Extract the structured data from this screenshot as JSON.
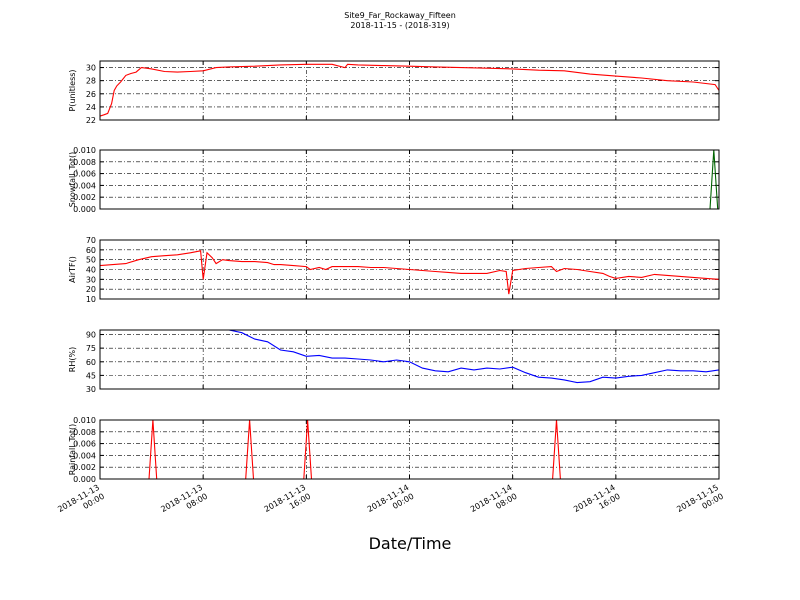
{
  "title": "Site9_Far_Rockaway_Fifteen",
  "subtitle": "2018-11-15 - (2018-319)",
  "xlabel": "Date/Time",
  "x_ticks": [
    [
      "2018-11-13",
      "00:00"
    ],
    [
      "2018-11-13",
      "08:00"
    ],
    [
      "2018-11-13",
      "16:00"
    ],
    [
      "2018-11-14",
      "00:00"
    ],
    [
      "2018-11-14",
      "08:00"
    ],
    [
      "2018-11-14",
      "16:00"
    ],
    [
      "2018-11-15",
      "00:00"
    ]
  ],
  "chart_data": [
    {
      "type": "line",
      "ylabel": "P(unitless)",
      "color": "#ff0000",
      "ylim": [
        22,
        31
      ],
      "yticks": [
        "22",
        "24",
        "26",
        "28",
        "30"
      ],
      "ytick_values": [
        22,
        24,
        26,
        28,
        30
      ],
      "grid": true,
      "x": [
        0,
        0.3,
        0.6,
        0.9,
        1.1,
        1.3,
        1.6,
        2.0,
        2.4,
        2.8,
        3.2,
        3.6,
        4,
        5,
        6,
        7,
        8,
        9,
        10,
        12,
        14,
        16,
        18,
        19,
        19.2,
        20,
        22,
        24,
        26,
        28,
        30,
        32,
        34,
        36,
        38,
        40,
        42,
        44,
        46,
        47.7,
        48
      ],
      "y": [
        22.6,
        22.8,
        23.0,
        24.5,
        26.5,
        27.2,
        27.8,
        28.8,
        29.1,
        29.3,
        30.0,
        29.9,
        29.8,
        29.4,
        29.3,
        29.4,
        29.5,
        30.0,
        30.1,
        30.2,
        30.4,
        30.5,
        30.5,
        30.0,
        30.5,
        30.4,
        30.3,
        30.2,
        30.1,
        30.0,
        29.9,
        29.8,
        29.6,
        29.5,
        29.0,
        28.7,
        28.4,
        28.0,
        27.8,
        27.4,
        26.5
      ]
    },
    {
      "type": "line",
      "ylabel": "Snowfall_Tot()",
      "color": "#006400",
      "ylim": [
        0,
        0.01
      ],
      "yticks": [
        "0.000",
        "0.002",
        "0.004",
        "0.006",
        "0.008",
        "0.010"
      ],
      "ytick_values": [
        0,
        0.002,
        0.004,
        0.006,
        0.008,
        0.01
      ],
      "grid": true,
      "x": [
        0,
        47.3,
        47.6,
        47.9,
        48
      ],
      "y": [
        0,
        0,
        0.01,
        0,
        0
      ]
    },
    {
      "type": "line",
      "ylabel": "AirTF()",
      "color": "#ff0000",
      "ylim": [
        10,
        70
      ],
      "yticks": [
        "10",
        "20",
        "30",
        "40",
        "50",
        "60",
        "70"
      ],
      "ytick_values": [
        10,
        20,
        30,
        40,
        50,
        60,
        70
      ],
      "grid": true,
      "x": [
        0,
        2,
        3,
        4,
        5,
        6,
        7,
        7.8,
        8.0,
        8.3,
        8.7,
        9,
        9.5,
        10,
        11,
        12,
        13,
        13.5,
        14,
        15,
        16,
        16.3,
        17,
        17.5,
        18,
        19,
        20,
        21,
        22,
        23,
        24,
        25,
        26,
        27,
        28,
        29,
        30,
        31,
        31.5,
        31.7,
        32,
        33,
        34,
        35,
        35.4,
        36,
        37,
        38,
        39,
        39.5,
        40,
        41,
        42,
        43,
        44,
        45,
        46,
        47,
        48
      ],
      "y": [
        44,
        46,
        50,
        53,
        54,
        55,
        57,
        59,
        30,
        57,
        52,
        46,
        50,
        49,
        48,
        48,
        47,
        45,
        45,
        44,
        43,
        40,
        42,
        40,
        43,
        43,
        43,
        42,
        42,
        41,
        40,
        39,
        38,
        37,
        36,
        36,
        36,
        39,
        38,
        15,
        39,
        41,
        42,
        43,
        38,
        41,
        40,
        38,
        36,
        33,
        31,
        33,
        32,
        35,
        34,
        33,
        32,
        31,
        30
      ]
    },
    {
      "type": "line",
      "ylabel": "RH(%)",
      "color": "#0000ff",
      "ylim": [
        30,
        95
      ],
      "yticks": [
        "30",
        "45",
        "60",
        "75",
        "90"
      ],
      "ytick_values": [
        30,
        45,
        60,
        75,
        90
      ],
      "grid": true,
      "x": [
        8,
        9,
        10,
        11,
        12,
        13,
        14,
        15,
        16,
        17,
        18,
        19,
        20,
        21,
        22,
        23,
        24,
        25,
        26,
        27,
        28,
        29,
        30,
        31,
        32,
        33,
        34,
        35,
        36,
        37,
        38,
        39,
        40,
        41,
        42,
        43,
        44,
        45,
        46,
        47,
        48
      ],
      "y": [
        95,
        95,
        95,
        92,
        85,
        82,
        73,
        71,
        66,
        67,
        64,
        64,
        63,
        62,
        60,
        62,
        60,
        53,
        50,
        49,
        53,
        51,
        53,
        52,
        54,
        48,
        43,
        42,
        40,
        37,
        38,
        43,
        42,
        44,
        45,
        48,
        51,
        50,
        50,
        49,
        51
      ]
    },
    {
      "type": "line",
      "ylabel": "Rainfall_Tot()",
      "color": "#ff0000",
      "ylim": [
        0,
        0.01
      ],
      "yticks": [
        "0.000",
        "0.002",
        "0.004",
        "0.006",
        "0.008",
        "0.010"
      ],
      "ytick_values": [
        0,
        0.002,
        0.004,
        0.006,
        0.008,
        0.01
      ],
      "grid": true,
      "x": [
        0,
        3.8,
        4.1,
        4.4,
        11.3,
        11.6,
        11.9,
        15.8,
        16.1,
        16.4,
        35.1,
        35.4,
        35.7,
        48
      ],
      "y": [
        0,
        0,
        0.01,
        0,
        0,
        0.01,
        0,
        0,
        0.01,
        0,
        0,
        0.01,
        0,
        0
      ]
    }
  ]
}
